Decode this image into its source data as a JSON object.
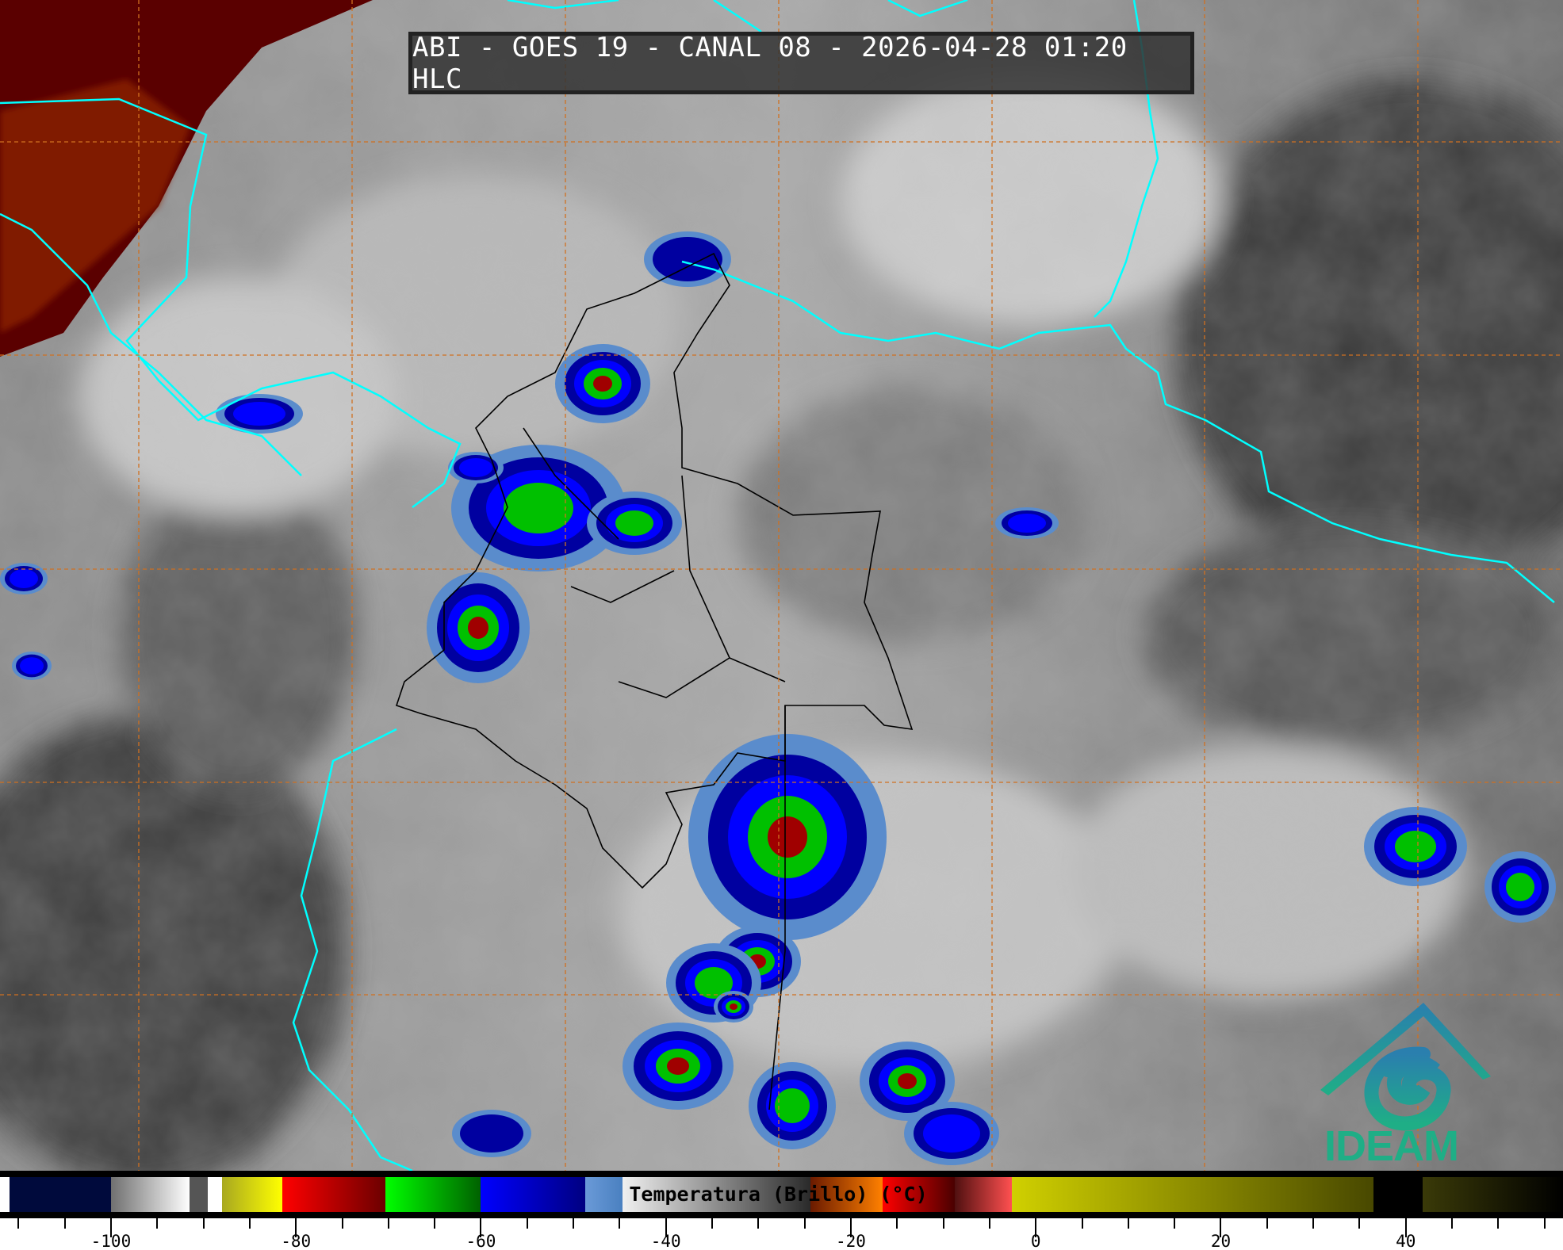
{
  "title": "ABI - GOES 19 - CANAL 08 - 2026-04-28 01:20 HLC",
  "colorbar": {
    "label": "Temperatura (Brillo) (°C)",
    "range": [
      -112,
      57
    ],
    "tick_labels": [
      "-100",
      "-80",
      "-60",
      "-40",
      "-20",
      "0",
      "20",
      "40"
    ],
    "tick_values": [
      -100,
      -80,
      -60,
      -40,
      -20,
      0,
      20,
      40
    ],
    "minor_step": 5,
    "segments": [
      {
        "from": -112,
        "to": -111,
        "colors": [
          "#ffffff",
          "#ffffff"
        ]
      },
      {
        "from": -111,
        "to": -100,
        "colors": [
          "#000a3c",
          "#000a3c"
        ]
      },
      {
        "from": -100,
        "to": -91.5,
        "colors": [
          "#707070",
          "#ffffff"
        ]
      },
      {
        "from": -91.5,
        "to": -89.5,
        "colors": [
          "#555555",
          "#555555"
        ]
      },
      {
        "from": -89.5,
        "to": -88,
        "colors": [
          "#ffffff",
          "#ffffff"
        ]
      },
      {
        "from": -88,
        "to": -81.5,
        "colors": [
          "#a8a820",
          "#ffff00"
        ]
      },
      {
        "from": -81.5,
        "to": -70.3,
        "colors": [
          "#ff0000",
          "#6a0000"
        ]
      },
      {
        "from": -70.3,
        "to": -60,
        "colors": [
          "#00ff00",
          "#006000"
        ]
      },
      {
        "from": -60,
        "to": -48.7,
        "colors": [
          "#0000ff",
          "#000080"
        ]
      },
      {
        "from": -48.7,
        "to": -44.7,
        "colors": [
          "#6a9ad8",
          "#4a80c0"
        ]
      },
      {
        "from": -44.7,
        "to": -24.4,
        "colors": [
          "#f0f0f0",
          "#2a2a2a"
        ]
      },
      {
        "from": -24.4,
        "to": -16.6,
        "colors": [
          "#6a1a00",
          "#ff8000"
        ]
      },
      {
        "from": -16.6,
        "to": -8.8,
        "colors": [
          "#ff0000",
          "#4a0000"
        ]
      },
      {
        "from": -8.8,
        "to": -2.6,
        "colors": [
          "#501010",
          "#ff5050"
        ]
      },
      {
        "from": -2.6,
        "to": 36.5,
        "colors": [
          "#d0d000",
          "#484800"
        ]
      },
      {
        "from": 36.5,
        "to": 41.8,
        "colors": [
          "#000000",
          "#000000"
        ]
      },
      {
        "from": 41.8,
        "to": 57,
        "colors": [
          "#3a3a08",
          "#000000"
        ]
      }
    ]
  },
  "logo": {
    "text": "IDEAM",
    "color": "#1fae86",
    "roof_color": "#2a7fae"
  },
  "colors": {
    "coastline": "#00ffff",
    "grid": "#d07020",
    "borders": "#000000"
  }
}
